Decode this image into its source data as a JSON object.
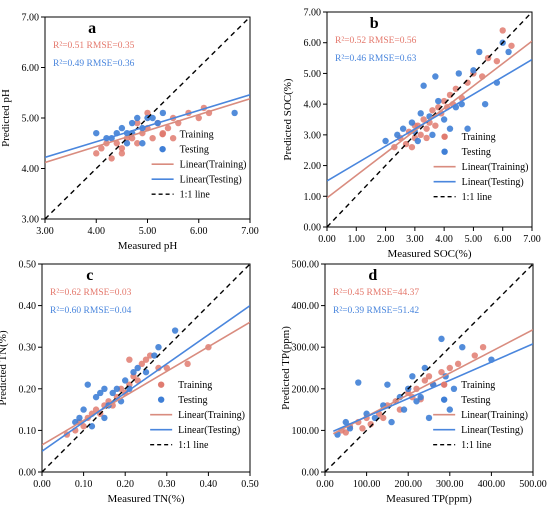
{
  "colors": {
    "training": "#e07b70",
    "testing": "#3f7fd6",
    "training_line": "#d98c7f",
    "testing_line": "#4a86dd",
    "identity": "#000000",
    "stats_training": "#e4796d",
    "stats_testing": "#4a86dd"
  },
  "chart_data": [
    {
      "type": "scatter",
      "panel_label": "a",
      "xlabel": "Measured pH",
      "ylabel": "Predicted pH",
      "xlim": [
        3,
        7
      ],
      "ylim": [
        3,
        7
      ],
      "xticks": [
        3,
        4,
        5,
        6,
        7
      ],
      "yticks": [
        3,
        4,
        5,
        6,
        7
      ],
      "xtick_labels": [
        "3.00",
        "4.00",
        "5.00",
        "6.00",
        "7.00"
      ],
      "ytick_labels": [
        "3.00",
        "4.00",
        "5.00",
        "6.00",
        "7.00"
      ],
      "stats": {
        "training": "R²=0.51  RMSE=0.35",
        "testing": "R²=0.49  RMSE=0.36"
      },
      "legend": [
        "Training",
        "Testing",
        "Linear(Training)",
        "Linear(Testing)",
        "1:1 line"
      ],
      "legend_position": "lower-right",
      "grid": false,
      "fit": {
        "training": [
          [
            3,
            4.12
          ],
          [
            7,
            5.38
          ]
        ],
        "testing": [
          [
            3,
            4.22
          ],
          [
            7,
            5.46
          ]
        ]
      },
      "series": [
        {
          "name": "Training",
          "points": [
            [
              4.0,
              4.3
            ],
            [
              4.1,
              4.4
            ],
            [
              4.2,
              4.5
            ],
            [
              4.3,
              4.2
            ],
            [
              4.4,
              4.5
            ],
            [
              4.5,
              4.4
            ],
            [
              4.6,
              4.6
            ],
            [
              4.7,
              4.6
            ],
            [
              4.8,
              4.5
            ],
            [
              4.9,
              4.7
            ],
            [
              5.0,
              4.8
            ],
            [
              5.1,
              4.6
            ],
            [
              5.2,
              4.9
            ],
            [
              5.3,
              4.7
            ],
            [
              5.4,
              4.8
            ],
            [
              5.5,
              5.0
            ],
            [
              5.6,
              4.9
            ],
            [
              5.8,
              5.1
            ],
            [
              6.0,
              5.0
            ],
            [
              6.1,
              5.2
            ],
            [
              5.5,
              4.6
            ],
            [
              4.8,
              4.9
            ],
            [
              5.0,
              5.1
            ],
            [
              4.5,
              4.3
            ],
            [
              6.2,
              5.1
            ]
          ]
        },
        {
          "name": "Testing",
          "points": [
            [
              4.0,
              4.7
            ],
            [
              4.2,
              4.6
            ],
            [
              4.4,
              4.7
            ],
            [
              4.5,
              4.8
            ],
            [
              4.6,
              4.7
            ],
            [
              4.7,
              4.9
            ],
            [
              4.8,
              5.0
            ],
            [
              4.9,
              4.8
            ],
            [
              5.0,
              5.0
            ],
            [
              5.1,
              5.0
            ],
            [
              5.2,
              4.9
            ],
            [
              4.6,
              4.5
            ],
            [
              4.3,
              4.6
            ],
            [
              4.9,
              4.5
            ],
            [
              6.7,
              5.1
            ],
            [
              5.3,
              5.1
            ],
            [
              4.7,
              4.7
            ]
          ]
        }
      ]
    },
    {
      "type": "scatter",
      "panel_label": "b",
      "xlabel": "Measured SOC(%)",
      "ylabel": "Predicted SOC(%)",
      "xlim": [
        0,
        7
      ],
      "ylim": [
        0,
        7
      ],
      "xticks": [
        0,
        1,
        2,
        3,
        4,
        5,
        6,
        7
      ],
      "yticks": [
        0,
        1,
        2,
        3,
        4,
        5,
        6,
        7
      ],
      "xtick_labels": [
        "0.00",
        "1.00",
        "2.00",
        "3.00",
        "4.00",
        "5.00",
        "6.00",
        "7.00"
      ],
      "ytick_labels": [
        "0.00",
        "1.00",
        "2.00",
        "3.00",
        "4.00",
        "5.00",
        "6.00",
        "7.00"
      ],
      "stats": {
        "training": "R²=0.52  RMSE=0.56",
        "testing": "R²=0.46  RMSE=0.63"
      },
      "legend": [
        "Training",
        "Testing",
        "Linear(Training)",
        "Linear(Testing)",
        "1:1 line"
      ],
      "legend_position": "lower-right",
      "grid": false,
      "fit": {
        "training": [
          [
            0,
            0.95
          ],
          [
            7,
            6.05
          ]
        ],
        "testing": [
          [
            0,
            1.5
          ],
          [
            7,
            5.45
          ]
        ]
      },
      "series": [
        {
          "name": "Training",
          "points": [
            [
              2.3,
              2.6
            ],
            [
              2.5,
              2.9
            ],
            [
              2.7,
              2.7
            ],
            [
              2.8,
              3.1
            ],
            [
              3.0,
              2.9
            ],
            [
              3.1,
              3.3
            ],
            [
              3.2,
              3.0
            ],
            [
              3.3,
              3.5
            ],
            [
              3.4,
              3.2
            ],
            [
              3.5,
              3.4
            ],
            [
              3.6,
              3.8
            ],
            [
              3.7,
              3.3
            ],
            [
              3.8,
              3.9
            ],
            [
              3.9,
              3.7
            ],
            [
              4.0,
              4.1
            ],
            [
              4.1,
              3.9
            ],
            [
              4.2,
              4.3
            ],
            [
              4.4,
              4.5
            ],
            [
              4.6,
              4.2
            ],
            [
              4.8,
              4.7
            ],
            [
              5.0,
              5.0
            ],
            [
              5.3,
              4.9
            ],
            [
              5.5,
              5.5
            ],
            [
              5.8,
              5.4
            ],
            [
              6.0,
              6.4
            ],
            [
              6.3,
              5.9
            ],
            [
              3.0,
              3.3
            ],
            [
              3.4,
              2.9
            ],
            [
              4.3,
              4.0
            ],
            [
              2.9,
              2.6
            ]
          ]
        },
        {
          "name": "Testing",
          "points": [
            [
              2.0,
              2.8
            ],
            [
              2.4,
              3.0
            ],
            [
              2.6,
              3.2
            ],
            [
              2.9,
              3.4
            ],
            [
              3.0,
              3.1
            ],
            [
              3.2,
              3.7
            ],
            [
              3.3,
              4.6
            ],
            [
              3.5,
              3.6
            ],
            [
              3.6,
              3.0
            ],
            [
              3.8,
              4.1
            ],
            [
              4.0,
              3.5
            ],
            [
              4.2,
              3.2
            ],
            [
              4.4,
              3.9
            ],
            [
              4.6,
              4.0
            ],
            [
              4.8,
              3.2
            ],
            [
              5.0,
              5.1
            ],
            [
              5.2,
              5.7
            ],
            [
              5.4,
              4.0
            ],
            [
              5.8,
              4.7
            ],
            [
              6.0,
              6.0
            ],
            [
              6.2,
              5.7
            ],
            [
              3.7,
              4.9
            ],
            [
              4.5,
              5.0
            ],
            [
              3.1,
              2.8
            ]
          ]
        }
      ]
    },
    {
      "type": "scatter",
      "panel_label": "c",
      "xlabel": "Measured TN(%)",
      "ylabel": "Predicted TN(%)",
      "xlim": [
        0,
        0.5
      ],
      "ylim": [
        0,
        0.5
      ],
      "xticks": [
        0,
        0.1,
        0.2,
        0.3,
        0.4,
        0.5
      ],
      "yticks": [
        0,
        0.1,
        0.2,
        0.3,
        0.4,
        0.5
      ],
      "xtick_labels": [
        "0.00",
        "0.10",
        "0.20",
        "0.30",
        "0.40",
        "0.50"
      ],
      "ytick_labels": [
        "0.00",
        "0.10",
        "0.20",
        "0.30",
        "0.40",
        "0.50"
      ],
      "stats": {
        "training": "R²=0.62  RMSE=0.03",
        "testing": "R²=0.60  RMSE=0.04"
      },
      "legend": [
        "Training",
        "Testing",
        "Linear(Training)",
        "Linear(Testing)",
        "1:1 line"
      ],
      "legend_position": "lower-right",
      "grid": false,
      "fit": {
        "training": [
          [
            0,
            0.065
          ],
          [
            0.5,
            0.36
          ]
        ],
        "testing": [
          [
            0,
            0.05
          ],
          [
            0.5,
            0.4
          ]
        ]
      },
      "series": [
        {
          "name": "Training",
          "points": [
            [
              0.06,
              0.09
            ],
            [
              0.08,
              0.1
            ],
            [
              0.09,
              0.12
            ],
            [
              0.1,
              0.11
            ],
            [
              0.11,
              0.13
            ],
            [
              0.12,
              0.14
            ],
            [
              0.13,
              0.15
            ],
            [
              0.14,
              0.14
            ],
            [
              0.15,
              0.16
            ],
            [
              0.16,
              0.17
            ],
            [
              0.17,
              0.16
            ],
            [
              0.18,
              0.18
            ],
            [
              0.19,
              0.2
            ],
            [
              0.2,
              0.19
            ],
            [
              0.21,
              0.21
            ],
            [
              0.22,
              0.23
            ],
            [
              0.23,
              0.22
            ],
            [
              0.24,
              0.26
            ],
            [
              0.25,
              0.27
            ],
            [
              0.26,
              0.28
            ],
            [
              0.28,
              0.25
            ],
            [
              0.3,
              0.25
            ],
            [
              0.35,
              0.26
            ],
            [
              0.4,
              0.3
            ],
            [
              0.21,
              0.27
            ]
          ]
        },
        {
          "name": "Testing",
          "points": [
            [
              0.08,
              0.12
            ],
            [
              0.1,
              0.15
            ],
            [
              0.11,
              0.21
            ],
            [
              0.12,
              0.11
            ],
            [
              0.13,
              0.18
            ],
            [
              0.14,
              0.19
            ],
            [
              0.15,
              0.13
            ],
            [
              0.16,
              0.16
            ],
            [
              0.17,
              0.19
            ],
            [
              0.18,
              0.2
            ],
            [
              0.19,
              0.17
            ],
            [
              0.2,
              0.22
            ],
            [
              0.21,
              0.2
            ],
            [
              0.22,
              0.24
            ],
            [
              0.23,
              0.25
            ],
            [
              0.25,
              0.24
            ],
            [
              0.27,
              0.28
            ],
            [
              0.28,
              0.3
            ],
            [
              0.32,
              0.34
            ],
            [
              0.15,
              0.2
            ],
            [
              0.09,
              0.13
            ]
          ]
        }
      ]
    },
    {
      "type": "scatter",
      "panel_label": "d",
      "xlabel": "Measured TP(ppm)",
      "ylabel": "Predicted TP(ppm)",
      "xlim": [
        0,
        500
      ],
      "ylim": [
        0,
        500
      ],
      "xticks": [
        0,
        100,
        200,
        300,
        400,
        500
      ],
      "yticks": [
        0,
        100,
        200,
        300,
        400,
        500
      ],
      "xtick_labels": [
        "0.00",
        "100.00",
        "200.00",
        "300.00",
        "400.00",
        "500.00"
      ],
      "ytick_labels": [
        "0.00",
        "100.00",
        "200.00",
        "300.00",
        "400.00",
        "500.00"
      ],
      "stats": {
        "training": "R²=0.45  RMSE=44.37",
        "testing": "R²=0.39  RMSE=51.42"
      },
      "legend": [
        "Training",
        "Testing",
        "Linear(Training)",
        "Linear(Testing)",
        "1:1 line"
      ],
      "legend_position": "lower-right",
      "grid": false,
      "fit": {
        "training": [
          [
            20,
            92
          ],
          [
            500,
            342
          ]
        ],
        "testing": [
          [
            20,
            98
          ],
          [
            500,
            308
          ]
        ]
      },
      "series": [
        {
          "name": "Training",
          "points": [
            [
              40,
              100
            ],
            [
              50,
              95
            ],
            [
              60,
              110
            ],
            [
              80,
              120
            ],
            [
              90,
              105
            ],
            [
              100,
              130
            ],
            [
              110,
              115
            ],
            [
              130,
              140
            ],
            [
              150,
              160
            ],
            [
              170,
              170
            ],
            [
              180,
              150
            ],
            [
              200,
              190
            ],
            [
              210,
              180
            ],
            [
              220,
              200
            ],
            [
              240,
              220
            ],
            [
              250,
              230
            ],
            [
              260,
              210
            ],
            [
              280,
              240
            ],
            [
              300,
              250
            ],
            [
              320,
              260
            ],
            [
              360,
              280
            ],
            [
              380,
              300
            ],
            [
              140,
              130
            ],
            [
              230,
              175
            ]
          ]
        },
        {
          "name": "Testing",
          "points": [
            [
              30,
              90
            ],
            [
              50,
              120
            ],
            [
              60,
              105
            ],
            [
              80,
              215
            ],
            [
              100,
              140
            ],
            [
              120,
              130
            ],
            [
              140,
              160
            ],
            [
              150,
              210
            ],
            [
              160,
              120
            ],
            [
              180,
              180
            ],
            [
              190,
              150
            ],
            [
              200,
              200
            ],
            [
              210,
              230
            ],
            [
              220,
              170
            ],
            [
              230,
              180
            ],
            [
              240,
              250
            ],
            [
              250,
              130
            ],
            [
              260,
              210
            ],
            [
              280,
              320
            ],
            [
              300,
              150
            ],
            [
              310,
              200
            ],
            [
              330,
              300
            ],
            [
              400,
              270
            ],
            [
              290,
              230
            ]
          ]
        }
      ]
    }
  ]
}
